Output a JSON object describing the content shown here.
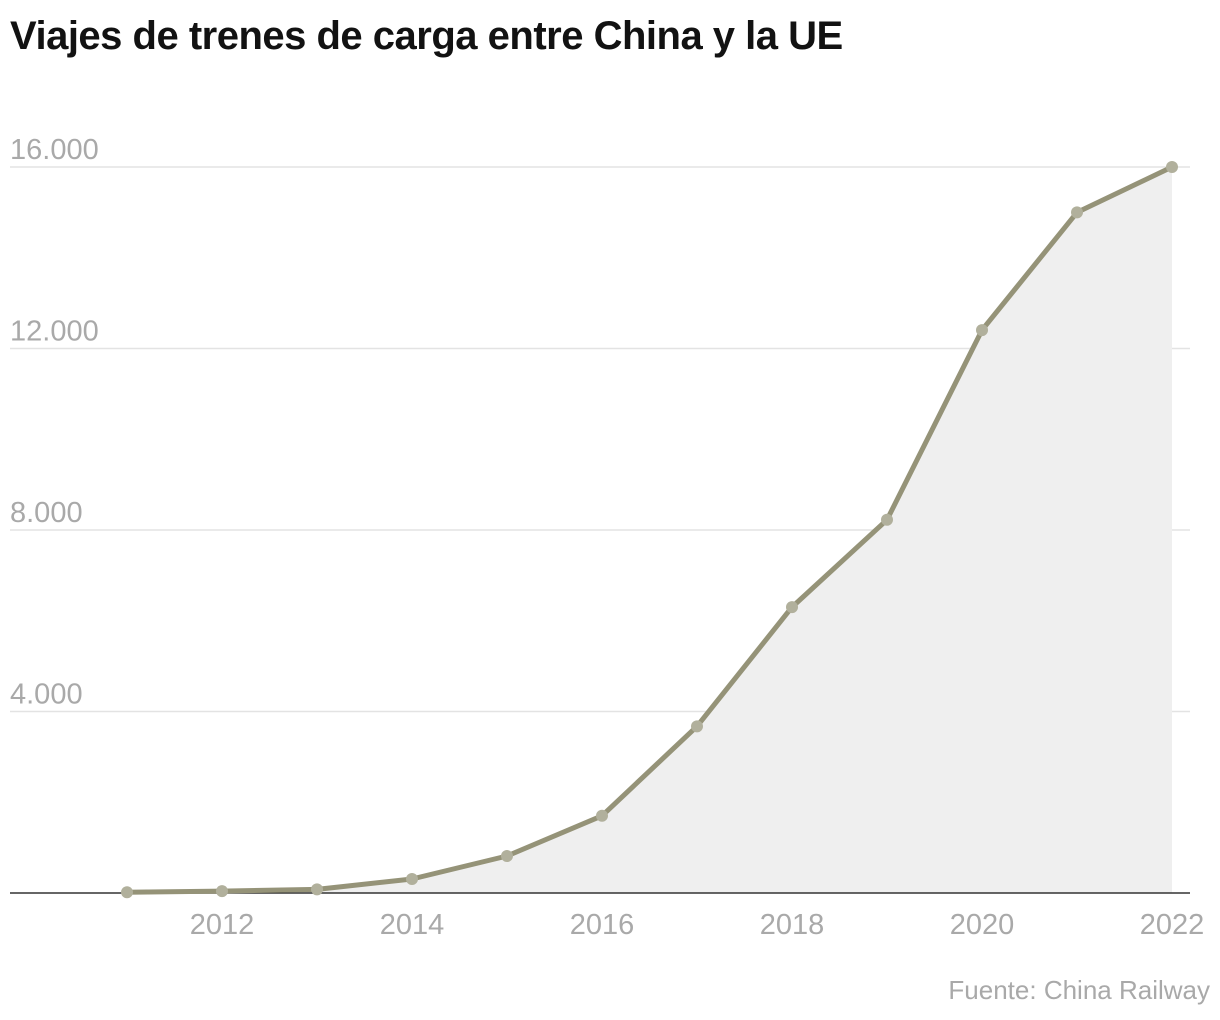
{
  "chart_data": {
    "type": "area",
    "title": "Viajes de trenes de carga entre China y la UE",
    "xlabel": "",
    "ylabel": "",
    "x": [
      2011,
      2012,
      2013,
      2014,
      2015,
      2016,
      2017,
      2018,
      2019,
      2020,
      2021,
      2022
    ],
    "values": [
      17,
      42,
      80,
      308,
      815,
      1702,
      3673,
      6300,
      8225,
      12406,
      15000,
      16000
    ],
    "x_ticks": [
      "2012",
      "2014",
      "2016",
      "2018",
      "2020",
      "2022"
    ],
    "y_ticks": [
      "4.000",
      "8.000",
      "12.000",
      "16.000"
    ],
    "xlim": [
      2010,
      2022.4
    ],
    "ylim": [
      0,
      16000
    ],
    "grid": true,
    "line_color": "#959378",
    "marker_color": "#b1b09c",
    "area_color": "#efefef",
    "source": "Fuente: China Railway"
  }
}
